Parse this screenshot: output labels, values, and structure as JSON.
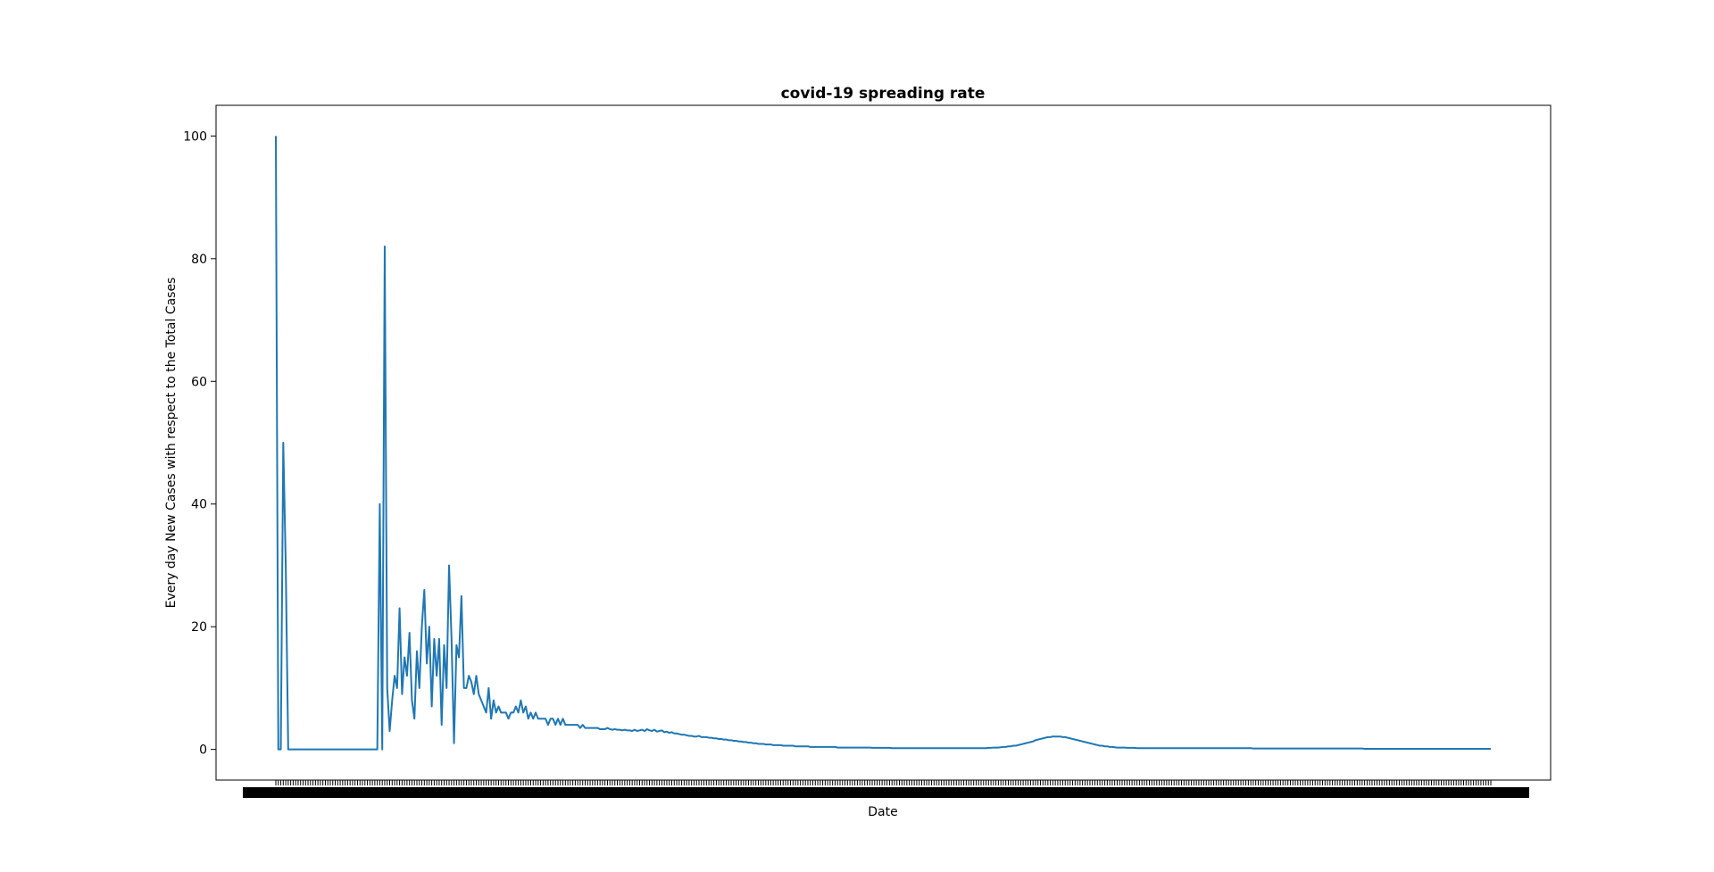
{
  "chart_data": {
    "type": "line",
    "title": "covid-19 spreading rate",
    "xlabel": "Date",
    "ylabel": "Every day New Cases with respect to the Total Cases",
    "x_note": "x-axis is one categorical tick per day; tick labels overlap into an unreadable black band",
    "ylim": [
      -5,
      105
    ],
    "yticks": [
      0,
      20,
      40,
      60,
      80,
      100
    ],
    "grid": false,
    "legend": "none",
    "colors": {
      "line": "#1f77b4",
      "axes": "#000000",
      "background": "#ffffff"
    },
    "series": [
      {
        "values": [
          100,
          0,
          0,
          50,
          30,
          0,
          0,
          0,
          0,
          0,
          0,
          0,
          0,
          0,
          0,
          0,
          0,
          0,
          0,
          0,
          0,
          0,
          0,
          0,
          0,
          0,
          0,
          0,
          0,
          0,
          0,
          0,
          0,
          0,
          0,
          0,
          0,
          0,
          0,
          0,
          0,
          0,
          40,
          0,
          82,
          10,
          3,
          8,
          12,
          10,
          23,
          9,
          15,
          12,
          19,
          8,
          5,
          16,
          10,
          20,
          26,
          14,
          20,
          7,
          18,
          12,
          18,
          4,
          17,
          10,
          30,
          18,
          1,
          17,
          15,
          25,
          10,
          10,
          12,
          11,
          9,
          12,
          9,
          8,
          7,
          6,
          10,
          5,
          8,
          6,
          7,
          6,
          6,
          6,
          5,
          6,
          6,
          7,
          6,
          8,
          6,
          7,
          5,
          6,
          5,
          6,
          5,
          5,
          5,
          5,
          4,
          5,
          5,
          4,
          5,
          4,
          5,
          4,
          4,
          4,
          4,
          4,
          4,
          3.5,
          4,
          3.5,
          3.5,
          3.5,
          3.5,
          3.5,
          3.5,
          3.3,
          3.3,
          3.3,
          3.5,
          3.3,
          3.2,
          3.3,
          3.2,
          3.2,
          3.1,
          3.2,
          3.1,
          3.1,
          3.0,
          3.2,
          3.0,
          3.1,
          3.2,
          3.0,
          3.3,
          3.1,
          3.0,
          3.2,
          2.9,
          3.0,
          3.1,
          2.8,
          2.9,
          2.7,
          2.8,
          2.6,
          2.6,
          2.5,
          2.4,
          2.4,
          2.3,
          2.2,
          2.2,
          2.1,
          2.1,
          2.2,
          2.0,
          2.0,
          2.0,
          1.9,
          1.9,
          1.8,
          1.8,
          1.7,
          1.7,
          1.6,
          1.6,
          1.5,
          1.5,
          1.4,
          1.4,
          1.3,
          1.3,
          1.2,
          1.2,
          1.1,
          1.1,
          1.0,
          1.0,
          0.9,
          0.9,
          0.9,
          0.8,
          0.8,
          0.8,
          0.7,
          0.7,
          0.7,
          0.7,
          0.6,
          0.6,
          0.6,
          0.6,
          0.6,
          0.5,
          0.5,
          0.5,
          0.5,
          0.5,
          0.5,
          0.4,
          0.4,
          0.4,
          0.4,
          0.4,
          0.4,
          0.4,
          0.4,
          0.4,
          0.4,
          0.4,
          0.3,
          0.3,
          0.3,
          0.3,
          0.3,
          0.3,
          0.3,
          0.3,
          0.3,
          0.3,
          0.3,
          0.3,
          0.3,
          0.3,
          0.25,
          0.25,
          0.25,
          0.25,
          0.25,
          0.25,
          0.25,
          0.25,
          0.2,
          0.2,
          0.2,
          0.2,
          0.2,
          0.2,
          0.2,
          0.2,
          0.2,
          0.2,
          0.2,
          0.2,
          0.2,
          0.2,
          0.2,
          0.2,
          0.2,
          0.2,
          0.2,
          0.2,
          0.2,
          0.2,
          0.2,
          0.2,
          0.2,
          0.2,
          0.2,
          0.2,
          0.2,
          0.2,
          0.2,
          0.2,
          0.2,
          0.2,
          0.2,
          0.2,
          0.2,
          0.2,
          0.2,
          0.25,
          0.25,
          0.3,
          0.3,
          0.3,
          0.35,
          0.4,
          0.4,
          0.5,
          0.5,
          0.6,
          0.6,
          0.7,
          0.8,
          0.9,
          1.0,
          1.1,
          1.2,
          1.3,
          1.5,
          1.6,
          1.7,
          1.8,
          1.9,
          2.0,
          2.0,
          2.1,
          2.1,
          2.1,
          2.1,
          2.0,
          2.0,
          1.9,
          1.8,
          1.7,
          1.6,
          1.5,
          1.4,
          1.3,
          1.2,
          1.1,
          1.0,
          0.9,
          0.8,
          0.7,
          0.6,
          0.6,
          0.5,
          0.5,
          0.4,
          0.4,
          0.35,
          0.3,
          0.3,
          0.3,
          0.3,
          0.25,
          0.25,
          0.25,
          0.25,
          0.2,
          0.2,
          0.2,
          0.2,
          0.2,
          0.2,
          0.2,
          0.2,
          0.2,
          0.2,
          0.2,
          0.2,
          0.2,
          0.2,
          0.2,
          0.2,
          0.2,
          0.2,
          0.2,
          0.2,
          0.2,
          0.2,
          0.2,
          0.2,
          0.2,
          0.2,
          0.2,
          0.2,
          0.2,
          0.2,
          0.2,
          0.2,
          0.2,
          0.2,
          0.2,
          0.2,
          0.2,
          0.2,
          0.2,
          0.2,
          0.2,
          0.2,
          0.2,
          0.2,
          0.2,
          0.2,
          0.2,
          0.15,
          0.15,
          0.15,
          0.15,
          0.15,
          0.15,
          0.15,
          0.15,
          0.15,
          0.15,
          0.15,
          0.15,
          0.15,
          0.15,
          0.15,
          0.15,
          0.15,
          0.15,
          0.15,
          0.15,
          0.15,
          0.15,
          0.15,
          0.15,
          0.15,
          0.15,
          0.15,
          0.15,
          0.15,
          0.15,
          0.15,
          0.15,
          0.15,
          0.15,
          0.15,
          0.15,
          0.15,
          0.15,
          0.15,
          0.15,
          0.15,
          0.15,
          0.15,
          0.15,
          0.15,
          0.1,
          0.1,
          0.1,
          0.1,
          0.1,
          0.1,
          0.1,
          0.1,
          0.1,
          0.1,
          0.1,
          0.1,
          0.1,
          0.1,
          0.1,
          0.1,
          0.1,
          0.1,
          0.1,
          0.1,
          0.1,
          0.1,
          0.1,
          0.1,
          0.1,
          0.1,
          0.1,
          0.1,
          0.1,
          0.1,
          0.1,
          0.1,
          0.1,
          0.1,
          0.1,
          0.1,
          0.1,
          0.1,
          0.1,
          0.1,
          0.1,
          0.1,
          0.1,
          0.1,
          0.1,
          0.1,
          0.1,
          0.1,
          0.1,
          0.1,
          0.1,
          0.1
        ]
      }
    ]
  }
}
